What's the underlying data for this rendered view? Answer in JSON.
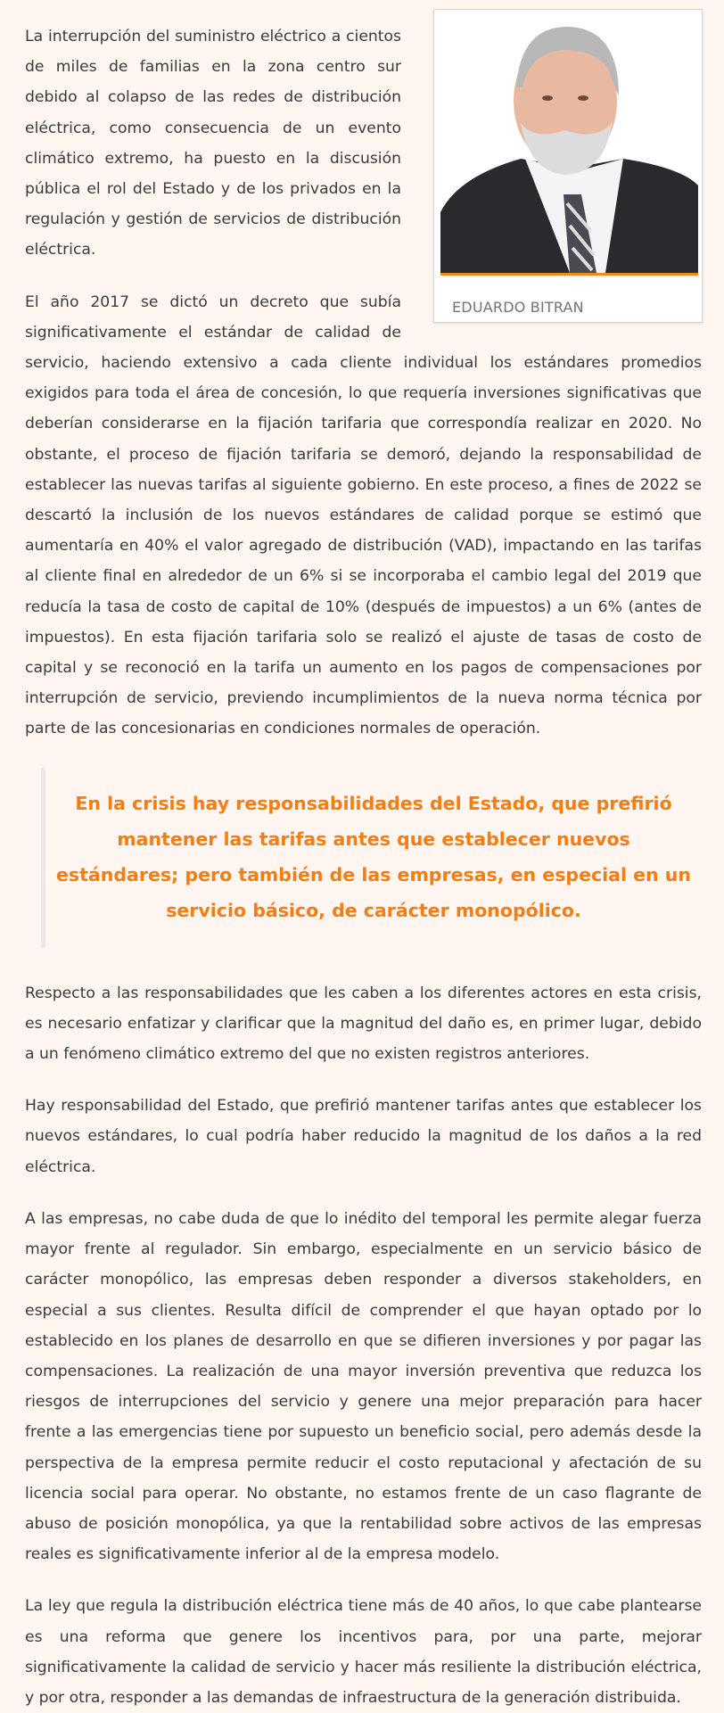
{
  "author": {
    "name": "EDUARDO BITRAN",
    "photo_alt": "portrait"
  },
  "accent_color": "#f28a1a",
  "quote_color": "#f57d12",
  "paragraphs": [
    "La interrupción del suministro eléctrico a cientos de miles de familias en la zona centro sur debido al colapso de las redes de distribución eléctrica, como consecuencia de un evento climático extremo, ha puesto en la discusión pública el rol del Estado y de los privados en la regulación y gestión de servicios de distribución eléctrica.",
    "El año 2017 se dictó un decreto que subía significativamente el estándar de calidad de servicio, haciendo extensivo a cada cliente individual los estándares promedios exigidos para toda el área de concesión, lo que requería inversiones significativas que deberían considerarse en la fijación tarifaria que correspondía realizar en 2020. No obstante, el proceso de fijación tarifaria se demoró, dejando la responsabilidad de establecer las nuevas tarifas al siguiente gobierno. En este proceso, a fines de 2022 se descartó la inclusión de los nuevos estándares de calidad porque se estimó que aumentaría en 40% el valor agregado de distribución (VAD), impactando en las tarifas al cliente final en alrededor de un 6% si se incorporaba el cambio legal del 2019 que reducía la tasa de costo de capital de 10% (después de impuestos) a un 6% (antes de impuestos). En esta fijación tarifaria solo se realizó el ajuste de tasas de costo de capital y se reconoció en la tarifa un aumento en los pagos de compensaciones por interrupción de servicio, previendo incumplimientos de la nueva norma técnica por parte de las concesionarias en condiciones normales de operación."
  ],
  "quote": "En la crisis hay responsabilidades del Estado, que prefirió mantener las tarifas antes que establecer nuevos estándares; pero también de las empresas, en especial en un servicio básico, de carácter monopólico.",
  "paragraphs_after": [
    "Respecto a las responsabilidades que les caben a los diferentes actores en esta crisis, es necesario enfatizar y clarificar que la magnitud del daño es, en primer lugar, debido a un fenómeno climático extremo del que no existen registros anteriores.",
    "Hay responsabilidad del Estado, que prefirió mantener tarifas antes que establecer los nuevos estándares, lo cual podría haber reducido la magnitud de los daños a la red eléctrica.",
    "A las empresas, no cabe duda de que lo inédito del temporal les permite alegar fuerza mayor frente al regulador. Sin embargo, especialmente en un servicio básico de carácter monopólico, las empresas deben responder a diversos stakeholders, en especial a sus clientes. Resulta difícil de comprender el que hayan optado por lo establecido en los planes de desarrollo en que se difieren inversiones y por pagar las compensaciones. La realización de una mayor inversión preventiva que reduzca los riesgos de interrupciones del servicio y genere una mejor preparación para hacer frente a las emergencias tiene por supuesto un beneficio social, pero además desde la perspectiva de la empresa permite reducir el costo reputacional y afectación de su licencia social para operar. No obstante, no estamos frente de un caso flagrante de abuso de posición monopólica, ya que la rentabilidad sobre activos de las empresas reales es significativamente inferior al de la empresa modelo.",
    "La ley que regula la distribución eléctrica tiene más de 40 años, lo que cabe plantearse es una reforma que genere los incentivos para, por una parte, mejorar significativamente la calidad de servicio y hacer más resiliente la distribución eléctrica, y por otra, responder a las demandas de infraestructura de la generación distribuida."
  ]
}
